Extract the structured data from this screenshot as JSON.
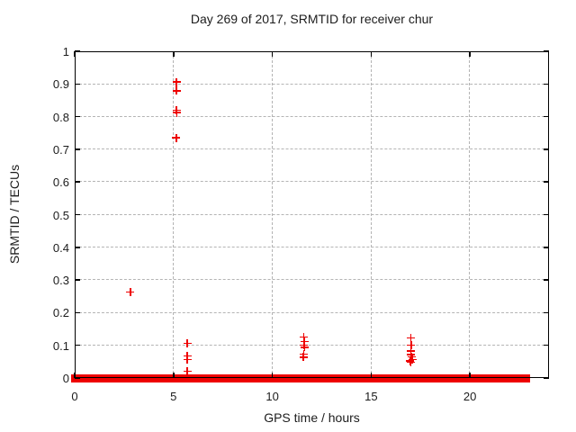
{
  "title": "Day 269 of 2017, SRMTID for receiver chur",
  "chart_data": {
    "type": "scatter",
    "title": "Day 269 of 2017, SRMTID for receiver chur",
    "xlabel": "GPS time / hours",
    "ylabel": "SRMTID / TECUs",
    "xlim": [
      0,
      24
    ],
    "ylim": [
      0,
      1
    ],
    "grid": true,
    "legend": "none",
    "marker": "plus",
    "marker_color": "#ee0000",
    "grid_color": "#b4b4b4",
    "frame_color": "#000000",
    "xticks": [
      {
        "v": 0,
        "label": "0"
      },
      {
        "v": 5,
        "label": "5"
      },
      {
        "v": 10,
        "label": "10"
      },
      {
        "v": 15,
        "label": "15"
      },
      {
        "v": 20,
        "label": "20"
      }
    ],
    "yticks": [
      {
        "v": 0,
        "label": "0"
      },
      {
        "v": 0.1,
        "label": "0.1"
      },
      {
        "v": 0.2,
        "label": "0.2"
      },
      {
        "v": 0.3,
        "label": "0.3"
      },
      {
        "v": 0.4,
        "label": "0.4"
      },
      {
        "v": 0.5,
        "label": "0.5"
      },
      {
        "v": 0.6,
        "label": "0.6"
      },
      {
        "v": 0.7,
        "label": "0.7"
      },
      {
        "v": 0.8,
        "label": "0.8"
      },
      {
        "v": 0.9,
        "label": "0.9"
      },
      {
        "v": 1,
        "label": "1"
      }
    ],
    "series": [
      {
        "name": "SRMTID",
        "points": [
          [
            2.82,
            0.263
          ],
          [
            5.15,
            0.906
          ],
          [
            5.15,
            0.879
          ],
          [
            5.15,
            0.82
          ],
          [
            5.16,
            0.812
          ],
          [
            5.14,
            0.735
          ],
          [
            5.7,
            0.106
          ],
          [
            5.7,
            0.068
          ],
          [
            5.7,
            0.057
          ],
          [
            5.7,
            0.021
          ],
          [
            11.6,
            0.126
          ],
          [
            11.62,
            0.112
          ],
          [
            11.6,
            0.101
          ],
          [
            11.63,
            0.094
          ],
          [
            11.58,
            0.073
          ],
          [
            11.57,
            0.064
          ],
          [
            17.0,
            0.123
          ],
          [
            17.03,
            0.101
          ],
          [
            17.02,
            0.082
          ],
          [
            17.0,
            0.071
          ],
          [
            17.05,
            0.065
          ],
          [
            17.08,
            0.057
          ],
          [
            16.98,
            0.052
          ],
          [
            17.02,
            0.048
          ]
        ]
      }
    ],
    "zero_band_segments": [
      {
        "x_start": 0,
        "x_end": 5.14
      },
      {
        "x_start": 5.24,
        "x_end": 17.07
      },
      {
        "x_start": 17.21,
        "x_end": 22.85
      }
    ],
    "zero_band_note": "dense run of data points at y=0 forming a thick red band with the black axis line visible through its center"
  }
}
